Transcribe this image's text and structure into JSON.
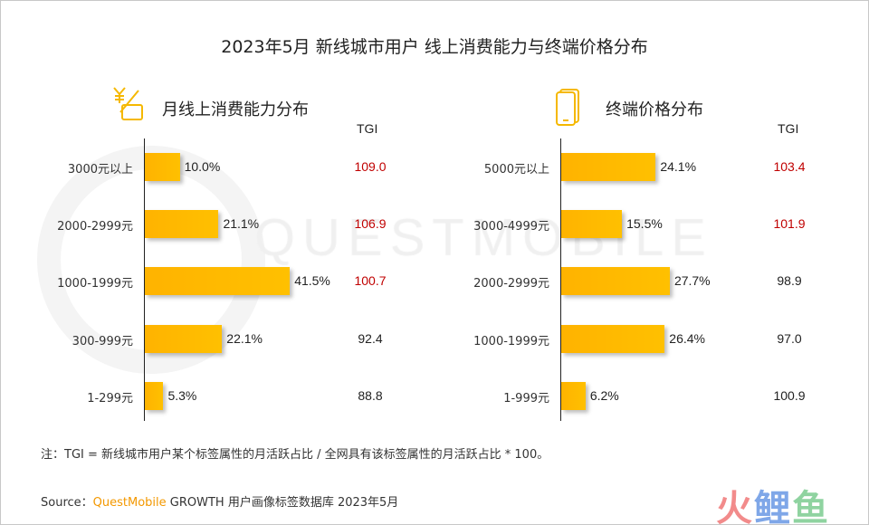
{
  "title": "2023年5月 新线城市用户 线上消费能力与终端价格分布",
  "watermark": "QUESTMOBILE",
  "tgi_header": "TGI",
  "chart_data": [
    {
      "type": "bar",
      "title": "月线上消费能力分布",
      "icon": "yuan-card-icon",
      "categories": [
        "3000元以上",
        "2000-2999元",
        "1000-1999元",
        "300-999元",
        "1-299元"
      ],
      "values": [
        10.0,
        21.1,
        41.5,
        22.1,
        5.3
      ],
      "labels": [
        "10.0%",
        "21.1%",
        "41.5%",
        "22.1%",
        "5.3%"
      ],
      "tgi": [
        "109.0",
        "106.9",
        "100.7",
        "92.4",
        "88.8"
      ],
      "tgi_colors": [
        "#c00000",
        "#c00000",
        "#c00000",
        "#222222",
        "#222222"
      ]
    },
    {
      "type": "bar",
      "title": "终端价格分布",
      "icon": "smartphone-icon",
      "categories": [
        "5000元以上",
        "3000-4999元",
        "2000-2999元",
        "1000-1999元",
        "1-999元"
      ],
      "values": [
        24.1,
        15.5,
        27.7,
        26.4,
        6.2
      ],
      "labels": [
        "24.1%",
        "15.5%",
        "27.7%",
        "26.4%",
        "6.2%"
      ],
      "tgi": [
        "103.4",
        "101.9",
        "98.9",
        "97.0",
        "100.9"
      ],
      "tgi_colors": [
        "#c00000",
        "#c00000",
        "#222222",
        "#222222",
        "#222222"
      ]
    }
  ],
  "note": "注：TGI = 新线城市用户某个标签属性的月活跃占比 / 全网具有该标签属性的月活跃占比 * 100。",
  "source": {
    "prefix": "Source：",
    "brand": "QuestMobile",
    "rest": " GROWTH 用户画像标签数据库 2023年5月"
  },
  "logo": {
    "chars": [
      "火",
      "鲤",
      "鱼"
    ],
    "colors": [
      "#f28b8b",
      "#7fa7e8",
      "#8fd3a0"
    ]
  },
  "colors": {
    "bar": "#ffc000",
    "accent": "#f39800",
    "tgi_high": "#c00000"
  }
}
